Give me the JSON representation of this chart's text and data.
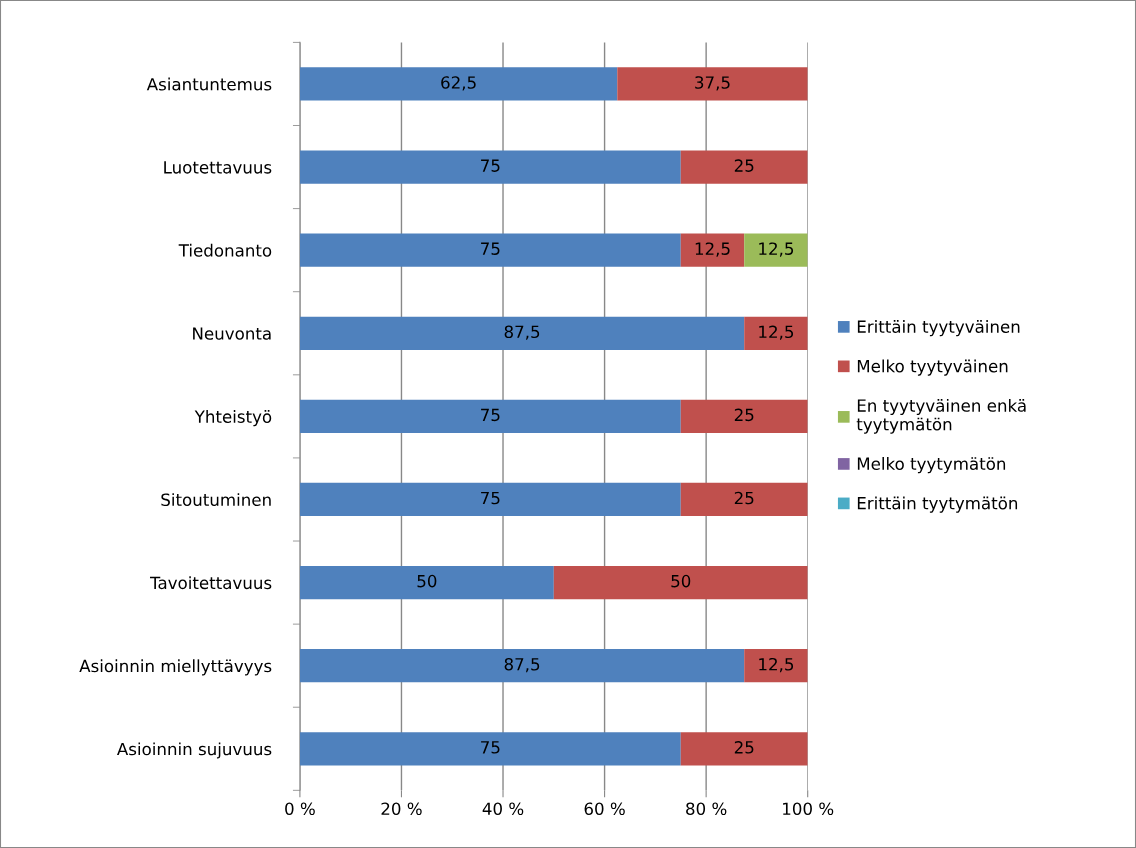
{
  "chart_data": {
    "type": "bar",
    "orientation": "horizontal",
    "stacked": true,
    "categories": [
      "Asiantuntemus",
      "Luotettavuus",
      "Tiedonanto",
      "Neuvonta",
      "Yhteistyö",
      "Sitoutuminen",
      "Tavoitettavuus",
      "Asioinnin miellyttävyys",
      "Asioinnin sujuvuus"
    ],
    "series": [
      {
        "name": "Erittäin tyytyväinen",
        "color": "#4f81bd",
        "values": [
          62.5,
          75,
          75,
          87.5,
          75,
          75,
          50,
          87.5,
          75
        ],
        "value_labels": [
          "62,5",
          "75",
          "75",
          "87,5",
          "75",
          "75",
          "50",
          "87,5",
          "75"
        ]
      },
      {
        "name": "Melko tyytyväinen",
        "color": "#c0504d",
        "values": [
          37.5,
          25,
          12.5,
          12.5,
          25,
          25,
          50,
          12.5,
          25
        ],
        "value_labels": [
          "37,5",
          "25",
          "12,5",
          "12,5",
          "25",
          "25",
          "50",
          "12,5",
          "25"
        ]
      },
      {
        "name": "En tyytyväinen enkä\ntyytymätön",
        "color": "#9bbb59",
        "values": [
          null,
          null,
          12.5,
          null,
          null,
          null,
          null,
          null,
          null
        ],
        "value_labels": [
          null,
          null,
          "12,5",
          null,
          null,
          null,
          null,
          null,
          null
        ]
      },
      {
        "name": "Melko tyytymätön",
        "color": "#8064a2",
        "values": [
          null,
          null,
          null,
          null,
          null,
          null,
          null,
          null,
          null
        ]
      },
      {
        "name": "Erittäin tyytymätön",
        "color": "#4bacc6",
        "values": [
          null,
          null,
          null,
          null,
          null,
          null,
          null,
          null,
          null
        ]
      }
    ],
    "xlim": [
      0,
      100
    ],
    "xticks": [
      {
        "value": 0,
        "label": "0 %"
      },
      {
        "value": 20,
        "label": "20 %"
      },
      {
        "value": 40,
        "label": "40 %"
      },
      {
        "value": 60,
        "label": "60 %"
      },
      {
        "value": 80,
        "label": "80 %"
      },
      {
        "value": 100,
        "label": "100 %"
      }
    ],
    "grid": "x",
    "legend": "right"
  }
}
